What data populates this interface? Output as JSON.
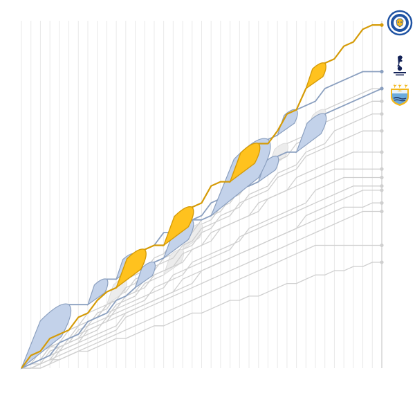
{
  "chart_data": {
    "type": "line",
    "title": "",
    "xlabel": "",
    "ylabel": "",
    "matches": 38,
    "xlim": [
      0,
      38
    ],
    "ylim": [
      0,
      82
    ],
    "grid": true,
    "series": [
      {
        "highlight": "leicester",
        "color": "#d59b07",
        "fill": "#ffc21e",
        "points": [
          0,
          3,
          4,
          7,
          8,
          9,
          12,
          13,
          16,
          18,
          19,
          22,
          25,
          28,
          29,
          29,
          32,
          35,
          38,
          39,
          43,
          44,
          44,
          47,
          50,
          53,
          53,
          56,
          60,
          61,
          66,
          69,
          72,
          73,
          76,
          77,
          80,
          81,
          81
        ]
      },
      {
        "highlight": "tottenham",
        "color": "#8a9fbf",
        "fill": "#c3d2ea",
        "points": [
          0,
          1,
          2,
          3,
          6,
          7,
          8,
          11,
          12,
          13,
          16,
          17,
          19,
          22,
          25,
          26,
          29,
          32,
          35,
          35,
          36,
          39,
          42,
          45,
          48,
          51,
          54,
          55,
          58,
          61,
          62,
          63,
          66,
          67,
          68,
          69,
          70,
          70,
          70
        ]
      },
      {
        "highlight": "man_city",
        "color": "#8a9fbf",
        "fill": "#c3d2ea",
        "points": [
          0,
          3,
          6,
          9,
          12,
          15,
          15,
          15,
          18,
          21,
          21,
          24,
          27,
          28,
          29,
          32,
          32,
          35,
          35,
          36,
          39,
          40,
          43,
          43,
          43,
          44,
          47,
          50,
          51,
          51,
          54,
          57,
          60,
          61,
          62,
          63,
          64,
          65,
          66
        ]
      },
      {
        "rival": true,
        "points": [
          0,
          1,
          2,
          5,
          5,
          6,
          9,
          10,
          13,
          14,
          17,
          18,
          21,
          22,
          23,
          26,
          27,
          28,
          31,
          34,
          35,
          38,
          39,
          42,
          43,
          46,
          47,
          50,
          53,
          54,
          55,
          58,
          61,
          62,
          63,
          64,
          65,
          66,
          66
        ]
      },
      {
        "rival": true,
        "points": [
          0,
          3,
          4,
          5,
          8,
          9,
          10,
          13,
          14,
          15,
          18,
          21,
          22,
          23,
          26,
          27,
          30,
          31,
          32,
          35,
          36,
          37,
          40,
          41,
          44,
          45,
          46,
          49,
          50,
          53,
          54,
          55,
          58,
          59,
          60,
          61,
          62,
          63,
          63
        ]
      },
      {
        "rival": true,
        "points": [
          0,
          0,
          1,
          4,
          5,
          6,
          7,
          10,
          11,
          12,
          15,
          16,
          17,
          20,
          21,
          22,
          25,
          28,
          29,
          32,
          33,
          36,
          37,
          38,
          41,
          42,
          43,
          46,
          47,
          48,
          51,
          52,
          53,
          56,
          57,
          58,
          59,
          60,
          60
        ]
      },
      {
        "rival": true,
        "points": [
          0,
          1,
          4,
          5,
          6,
          9,
          10,
          11,
          12,
          15,
          16,
          19,
          20,
          23,
          24,
          25,
          26,
          29,
          30,
          33,
          34,
          35,
          36,
          39,
          40,
          41,
          42,
          45,
          46,
          47,
          50,
          51,
          52,
          53,
          54,
          55,
          56,
          56,
          56
        ]
      },
      {
        "rival": true,
        "points": [
          0,
          1,
          2,
          3,
          4,
          7,
          8,
          11,
          12,
          13,
          14,
          17,
          18,
          19,
          22,
          23,
          24,
          25,
          28,
          29,
          32,
          33,
          34,
          35,
          36,
          39,
          40,
          41,
          42,
          45,
          46,
          47,
          48,
          49,
          50,
          51,
          51,
          51,
          51
        ]
      },
      {
        "rival": true,
        "points": [
          0,
          3,
          4,
          5,
          6,
          7,
          10,
          11,
          12,
          15,
          16,
          17,
          18,
          21,
          22,
          23,
          24,
          27,
          28,
          29,
          30,
          33,
          34,
          35,
          36,
          37,
          40,
          41,
          42,
          43,
          44,
          45,
          46,
          47,
          47,
          47,
          47,
          47,
          47
        ]
      },
      {
        "rival": true,
        "points": [
          0,
          0,
          1,
          2,
          5,
          6,
          7,
          8,
          9,
          12,
          13,
          14,
          15,
          16,
          19,
          20,
          21,
          22,
          25,
          26,
          27,
          28,
          29,
          30,
          33,
          34,
          35,
          36,
          37,
          38,
          39,
          42,
          43,
          44,
          45,
          45,
          45,
          45,
          45
        ]
      },
      {
        "rival": true,
        "points": [
          0,
          1,
          2,
          5,
          6,
          7,
          8,
          9,
          10,
          11,
          14,
          15,
          16,
          17,
          18,
          19,
          22,
          23,
          24,
          25,
          26,
          27,
          28,
          31,
          32,
          33,
          34,
          35,
          36,
          37,
          38,
          39,
          40,
          41,
          42,
          43,
          43,
          43,
          43
        ]
      },
      {
        "rival": true,
        "points": [
          0,
          0,
          0,
          1,
          4,
          5,
          6,
          7,
          8,
          9,
          10,
          13,
          14,
          15,
          16,
          17,
          18,
          19,
          20,
          23,
          24,
          25,
          26,
          27,
          28,
          29,
          30,
          31,
          32,
          33,
          36,
          37,
          38,
          39,
          40,
          41,
          42,
          42,
          42
        ]
      },
      {
        "rival": true,
        "points": [
          0,
          1,
          2,
          3,
          4,
          5,
          6,
          9,
          10,
          11,
          12,
          13,
          14,
          15,
          16,
          17,
          18,
          21,
          22,
          23,
          24,
          25,
          26,
          27,
          28,
          29,
          30,
          31,
          32,
          33,
          34,
          35,
          36,
          37,
          38,
          38,
          38,
          39,
          39
        ]
      },
      {
        "rival": true,
        "points": [
          0,
          0,
          1,
          2,
          3,
          4,
          5,
          6,
          7,
          8,
          9,
          12,
          13,
          14,
          15,
          16,
          17,
          18,
          19,
          20,
          21,
          22,
          23,
          24,
          25,
          26,
          27,
          28,
          29,
          30,
          31,
          32,
          33,
          34,
          35,
          36,
          37,
          37,
          37
        ]
      },
      {
        "rival": true,
        "points": [
          0,
          0,
          0,
          1,
          2,
          3,
          4,
          5,
          6,
          7,
          8,
          9,
          10,
          11,
          12,
          13,
          14,
          15,
          16,
          17,
          18,
          19,
          20,
          21,
          22,
          23,
          24,
          25,
          26,
          27,
          28,
          29,
          29,
          29,
          29,
          29,
          29,
          29,
          29
        ]
      },
      {
        "rival": true,
        "points": [
          0,
          1,
          1,
          2,
          2,
          3,
          4,
          4,
          5,
          6,
          7,
          7,
          8,
          9,
          10,
          10,
          11,
          12,
          13,
          13,
          14,
          15,
          16,
          16,
          17,
          17,
          18,
          19,
          20,
          20,
          21,
          22,
          22,
          23,
          23,
          24,
          24,
          25,
          25
        ]
      }
    ],
    "legend": [
      {
        "name": "leicester-crest-icon",
        "color": "#1f53a3",
        "position": "top-right"
      },
      {
        "name": "tottenham-crest-icon",
        "color": "#132257",
        "position": "right"
      },
      {
        "name": "man-city-crest-icon",
        "color": "#6cabdd",
        "position": "right"
      }
    ]
  }
}
